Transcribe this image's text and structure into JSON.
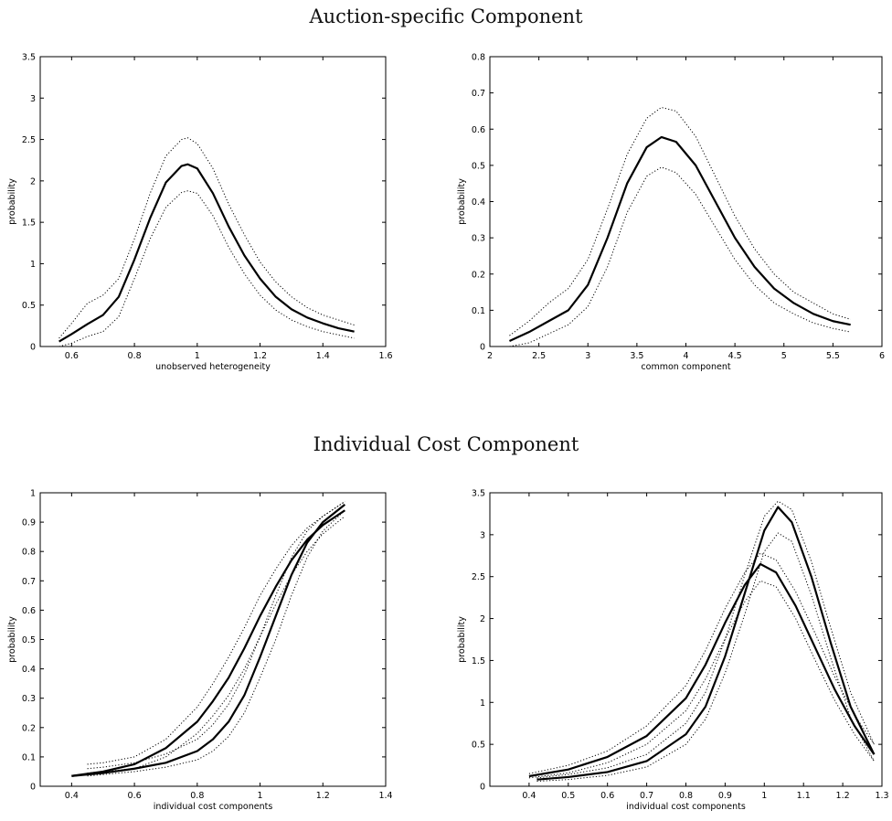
{
  "sections": {
    "top_title": "Auction-specific Component",
    "bottom_title": "Individual Cost Component"
  },
  "chart_data": [
    {
      "type": "line",
      "xlabel": "unobserved heterogeneity",
      "ylabel": "probability",
      "xlim": [
        0.5,
        1.6
      ],
      "ylim": [
        0,
        3.5
      ],
      "xticks": [
        0.6,
        0.8,
        1,
        1.2,
        1.4,
        1.6
      ],
      "yticks": [
        0,
        0.5,
        1,
        1.5,
        2,
        2.5,
        3,
        3.5
      ],
      "xtick_labels": [
        "0.6",
        "0.8",
        "1",
        "1.2",
        "1.4",
        "1.6"
      ],
      "ytick_labels": [
        "0",
        "0.5",
        "1",
        "1.5",
        "2",
        "2.5",
        "3",
        "3.5"
      ],
      "grid": false,
      "series": [
        {
          "style": "solid",
          "x": [
            0.56,
            0.6,
            0.65,
            0.7,
            0.75,
            0.8,
            0.85,
            0.9,
            0.95,
            0.97,
            1.0,
            1.05,
            1.1,
            1.15,
            1.2,
            1.25,
            1.3,
            1.35,
            1.4,
            1.45,
            1.5
          ],
          "y": [
            0.06,
            0.15,
            0.27,
            0.38,
            0.6,
            1.05,
            1.55,
            1.98,
            2.18,
            2.2,
            2.15,
            1.85,
            1.45,
            1.1,
            0.82,
            0.6,
            0.45,
            0.35,
            0.28,
            0.22,
            0.18
          ]
        },
        {
          "style": "dotted",
          "x": [
            0.56,
            0.6,
            0.65,
            0.7,
            0.75,
            0.8,
            0.85,
            0.9,
            0.95,
            0.97,
            1.0,
            1.05,
            1.1,
            1.15,
            1.2,
            1.25,
            1.3,
            1.35,
            1.4,
            1.45,
            1.5
          ],
          "y": [
            0.1,
            0.28,
            0.52,
            0.62,
            0.82,
            1.3,
            1.85,
            2.3,
            2.5,
            2.52,
            2.45,
            2.15,
            1.72,
            1.35,
            1.02,
            0.78,
            0.6,
            0.47,
            0.38,
            0.32,
            0.26
          ]
        },
        {
          "style": "dotted",
          "x": [
            0.56,
            0.6,
            0.65,
            0.7,
            0.75,
            0.8,
            0.85,
            0.9,
            0.95,
            0.97,
            1.0,
            1.05,
            1.1,
            1.15,
            1.2,
            1.25,
            1.3,
            1.35,
            1.4,
            1.45,
            1.5
          ],
          "y": [
            0.0,
            0.04,
            0.12,
            0.18,
            0.36,
            0.82,
            1.3,
            1.68,
            1.86,
            1.88,
            1.85,
            1.58,
            1.2,
            0.88,
            0.62,
            0.44,
            0.32,
            0.24,
            0.18,
            0.14,
            0.1
          ]
        }
      ]
    },
    {
      "type": "line",
      "xlabel": "common component",
      "ylabel": "probability",
      "xlim": [
        2,
        6
      ],
      "ylim": [
        0,
        0.8
      ],
      "xticks": [
        2,
        2.5,
        3,
        3.5,
        4,
        4.5,
        5,
        5.5,
        6
      ],
      "yticks": [
        0,
        0.1,
        0.2,
        0.3,
        0.4,
        0.5,
        0.6,
        0.7,
        0.8
      ],
      "xtick_labels": [
        "2",
        "2.5",
        "3",
        "3.5",
        "4",
        "4.5",
        "5",
        "5.5",
        "6"
      ],
      "ytick_labels": [
        "0",
        "0.1",
        "0.2",
        "0.3",
        "0.4",
        "0.5",
        "0.6",
        "0.7",
        "0.8"
      ],
      "grid": false,
      "series": [
        {
          "style": "solid",
          "x": [
            2.2,
            2.4,
            2.6,
            2.8,
            3.0,
            3.2,
            3.4,
            3.6,
            3.75,
            3.9,
            4.1,
            4.3,
            4.5,
            4.7,
            4.9,
            5.1,
            5.3,
            5.5,
            5.68
          ],
          "y": [
            0.015,
            0.04,
            0.07,
            0.1,
            0.17,
            0.3,
            0.45,
            0.55,
            0.578,
            0.565,
            0.5,
            0.4,
            0.3,
            0.22,
            0.16,
            0.12,
            0.09,
            0.07,
            0.06
          ]
        },
        {
          "style": "dotted",
          "x": [
            2.2,
            2.4,
            2.6,
            2.8,
            3.0,
            3.2,
            3.4,
            3.6,
            3.75,
            3.9,
            4.1,
            4.3,
            4.5,
            4.7,
            4.9,
            5.1,
            5.3,
            5.5,
            5.68
          ],
          "y": [
            0.03,
            0.07,
            0.12,
            0.16,
            0.24,
            0.38,
            0.53,
            0.63,
            0.66,
            0.65,
            0.58,
            0.47,
            0.36,
            0.27,
            0.2,
            0.15,
            0.12,
            0.09,
            0.075
          ]
        },
        {
          "style": "dotted",
          "x": [
            2.2,
            2.4,
            2.6,
            2.8,
            3.0,
            3.2,
            3.4,
            3.6,
            3.75,
            3.9,
            4.1,
            4.3,
            4.5,
            4.7,
            4.9,
            5.1,
            5.3,
            5.5,
            5.68
          ],
          "y": [
            0.0,
            0.01,
            0.035,
            0.06,
            0.11,
            0.22,
            0.37,
            0.47,
            0.495,
            0.48,
            0.42,
            0.33,
            0.24,
            0.17,
            0.12,
            0.09,
            0.065,
            0.05,
            0.04
          ]
        }
      ]
    },
    {
      "type": "line",
      "xlabel": "individual cost components",
      "ylabel": "probability",
      "xlim": [
        0.3,
        1.4
      ],
      "ylim": [
        0,
        1
      ],
      "xticks": [
        0.4,
        0.6,
        0.8,
        1,
        1.2,
        1.4
      ],
      "yticks": [
        0,
        0.1,
        0.2,
        0.3,
        0.4,
        0.5,
        0.6,
        0.7,
        0.8,
        0.9,
        1
      ],
      "xtick_labels": [
        "0.4",
        "0.6",
        "0.8",
        "1",
        "1.2",
        "1.4"
      ],
      "ytick_labels": [
        "0",
        "0.1",
        "0.2",
        "0.3",
        "0.4",
        "0.5",
        "0.6",
        "0.7",
        "0.8",
        "0.9",
        "1"
      ],
      "grid": false,
      "series": [
        {
          "style": "solid",
          "x": [
            0.4,
            0.5,
            0.6,
            0.7,
            0.8,
            0.85,
            0.9,
            0.95,
            1.0,
            1.05,
            1.1,
            1.15,
            1.2,
            1.27
          ],
          "y": [
            0.035,
            0.05,
            0.075,
            0.13,
            0.22,
            0.29,
            0.37,
            0.47,
            0.58,
            0.68,
            0.77,
            0.84,
            0.89,
            0.94
          ]
        },
        {
          "style": "solid",
          "x": [
            0.4,
            0.5,
            0.6,
            0.7,
            0.8,
            0.85,
            0.9,
            0.95,
            1.0,
            1.05,
            1.1,
            1.15,
            1.2,
            1.27
          ],
          "y": [
            0.035,
            0.045,
            0.06,
            0.08,
            0.12,
            0.16,
            0.22,
            0.31,
            0.44,
            0.58,
            0.72,
            0.83,
            0.9,
            0.96
          ]
        },
        {
          "style": "dotted",
          "x": [
            0.45,
            0.5,
            0.6,
            0.7,
            0.8,
            0.85,
            0.9,
            0.95,
            1.0,
            1.05,
            1.1,
            1.15,
            1.2,
            1.27
          ],
          "y": [
            0.075,
            0.08,
            0.1,
            0.16,
            0.27,
            0.35,
            0.44,
            0.54,
            0.65,
            0.74,
            0.82,
            0.88,
            0.92,
            0.97
          ]
        },
        {
          "style": "dotted",
          "x": [
            0.45,
            0.5,
            0.6,
            0.7,
            0.8,
            0.85,
            0.9,
            0.95,
            1.0,
            1.05,
            1.1,
            1.15,
            1.2,
            1.27
          ],
          "y": [
            0.045,
            0.05,
            0.06,
            0.1,
            0.18,
            0.24,
            0.31,
            0.4,
            0.51,
            0.62,
            0.72,
            0.8,
            0.86,
            0.92
          ]
        },
        {
          "style": "dotted",
          "x": [
            0.45,
            0.5,
            0.6,
            0.7,
            0.8,
            0.85,
            0.9,
            0.95,
            1.0,
            1.05,
            1.1,
            1.15,
            1.2,
            1.27
          ],
          "y": [
            0.06,
            0.065,
            0.08,
            0.11,
            0.16,
            0.21,
            0.28,
            0.38,
            0.51,
            0.65,
            0.78,
            0.87,
            0.92,
            0.97
          ]
        },
        {
          "style": "dotted",
          "x": [
            0.45,
            0.5,
            0.6,
            0.7,
            0.8,
            0.85,
            0.9,
            0.95,
            1.0,
            1.05,
            1.1,
            1.15,
            1.2,
            1.27
          ],
          "y": [
            0.035,
            0.04,
            0.05,
            0.065,
            0.09,
            0.12,
            0.17,
            0.25,
            0.37,
            0.5,
            0.65,
            0.78,
            0.87,
            0.94
          ]
        }
      ]
    },
    {
      "type": "line",
      "xlabel": "individual cost components",
      "ylabel": "probability",
      "xlim": [
        0.3,
        1.3
      ],
      "ylim": [
        0,
        3.5
      ],
      "xticks": [
        0.4,
        0.5,
        0.6,
        0.7,
        0.8,
        0.9,
        1,
        1.1,
        1.2,
        1.3
      ],
      "yticks": [
        0,
        0.5,
        1,
        1.5,
        2,
        2.5,
        3,
        3.5
      ],
      "xtick_labels": [
        "0.4",
        "0.5",
        "0.6",
        "0.7",
        "0.8",
        "0.9",
        "1",
        "1.1",
        "1.2",
        "1.3"
      ],
      "ytick_labels": [
        "0",
        "0.5",
        "1",
        "1.5",
        "2",
        "2.5",
        "3",
        "3.5"
      ],
      "grid": false,
      "series": [
        {
          "style": "solid",
          "x": [
            0.4,
            0.5,
            0.6,
            0.7,
            0.8,
            0.85,
            0.9,
            0.95,
            0.99,
            1.03,
            1.08,
            1.13,
            1.18,
            1.23,
            1.28
          ],
          "y": [
            0.12,
            0.2,
            0.35,
            0.6,
            1.05,
            1.45,
            1.95,
            2.4,
            2.65,
            2.55,
            2.15,
            1.65,
            1.15,
            0.72,
            0.38
          ]
        },
        {
          "style": "solid",
          "x": [
            0.42,
            0.5,
            0.6,
            0.7,
            0.8,
            0.85,
            0.9,
            0.95,
            1.0,
            1.035,
            1.07,
            1.12,
            1.17,
            1.22,
            1.28
          ],
          "y": [
            0.08,
            0.11,
            0.17,
            0.3,
            0.62,
            0.95,
            1.55,
            2.3,
            3.05,
            3.33,
            3.15,
            2.5,
            1.7,
            0.95,
            0.38
          ]
        },
        {
          "style": "dotted",
          "x": [
            0.4,
            0.5,
            0.6,
            0.7,
            0.8,
            0.85,
            0.9,
            0.95,
            0.99,
            1.03,
            1.08,
            1.13,
            1.18,
            1.23,
            1.28
          ],
          "y": [
            0.15,
            0.25,
            0.42,
            0.72,
            1.2,
            1.62,
            2.12,
            2.55,
            2.78,
            2.7,
            2.32,
            1.82,
            1.3,
            0.85,
            0.5
          ]
        },
        {
          "style": "dotted",
          "x": [
            0.4,
            0.5,
            0.6,
            0.7,
            0.8,
            0.85,
            0.9,
            0.95,
            0.99,
            1.03,
            1.08,
            1.13,
            1.18,
            1.23,
            1.28
          ],
          "y": [
            0.1,
            0.16,
            0.28,
            0.5,
            0.9,
            1.28,
            1.76,
            2.2,
            2.45,
            2.38,
            2.0,
            1.5,
            1.02,
            0.62,
            0.3
          ]
        },
        {
          "style": "dotted",
          "x": [
            0.42,
            0.5,
            0.6,
            0.7,
            0.8,
            0.85,
            0.9,
            0.95,
            1.0,
            1.035,
            1.07,
            1.12,
            1.17,
            1.22,
            1.28
          ],
          "y": [
            0.1,
            0.14,
            0.22,
            0.38,
            0.75,
            1.12,
            1.75,
            2.52,
            3.22,
            3.4,
            3.3,
            2.68,
            1.88,
            1.12,
            0.5
          ]
        },
        {
          "style": "dotted",
          "x": [
            0.42,
            0.5,
            0.6,
            0.7,
            0.8,
            0.85,
            0.9,
            0.95,
            1.0,
            1.035,
            1.07,
            1.12,
            1.17,
            1.22,
            1.28
          ],
          "y": [
            0.06,
            0.08,
            0.13,
            0.23,
            0.5,
            0.8,
            1.35,
            2.05,
            2.8,
            3.02,
            2.92,
            2.28,
            1.52,
            0.82,
            0.3
          ]
        }
      ]
    }
  ]
}
